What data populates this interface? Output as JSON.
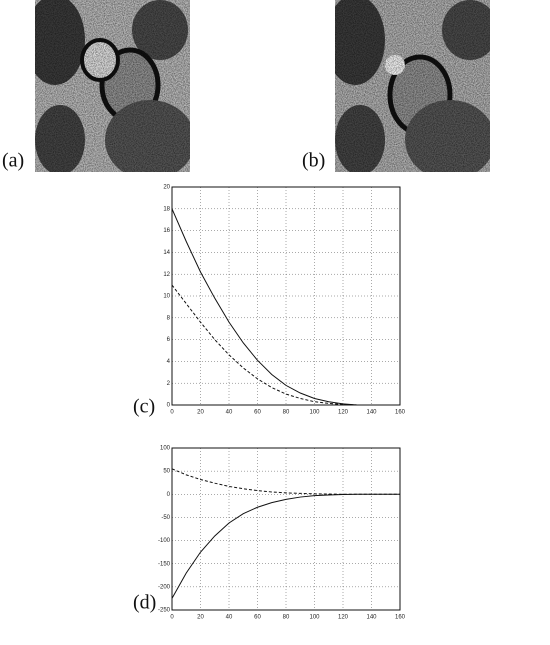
{
  "figure": {
    "labels": [
      "(a)",
      "(b)"
    ]
  },
  "chart_data": [
    {
      "type": "line",
      "label": "(c)",
      "x": [
        0,
        10,
        20,
        30,
        40,
        50,
        60,
        70,
        80,
        90,
        100,
        110,
        120,
        130,
        140,
        150,
        160
      ],
      "series": [
        {
          "color": "#111111",
          "dash": false,
          "values": [
            18,
            15,
            12.2,
            9.8,
            7.6,
            5.7,
            4.1,
            2.8,
            1.8,
            1.1,
            0.6,
            0.3,
            0.1,
            0,
            0,
            0,
            0
          ]
        },
        {
          "color": "#111111",
          "dash": true,
          "values": [
            11,
            9.3,
            7.6,
            6,
            4.6,
            3.4,
            2.4,
            1.6,
            1,
            0.6,
            0.3,
            0.15,
            0.05,
            0,
            0,
            0,
            0
          ]
        }
      ],
      "xlim": [
        0,
        160
      ],
      "xticks": [
        0,
        20,
        40,
        60,
        80,
        100,
        120,
        140,
        160
      ],
      "ylim": [
        0,
        20
      ],
      "yticks": [
        0,
        2,
        4,
        6,
        8,
        10,
        12,
        14,
        16,
        18,
        20
      ],
      "grid": true
    },
    {
      "type": "line",
      "label": "(d)",
      "x": [
        0,
        10,
        20,
        30,
        40,
        50,
        60,
        70,
        80,
        90,
        100,
        110,
        120,
        130,
        140,
        150,
        160
      ],
      "series": [
        {
          "color": "#111111",
          "dash": true,
          "values": [
            55,
            42,
            32,
            24,
            17,
            12,
            8,
            5,
            3,
            2,
            1,
            0.5,
            0,
            0,
            0,
            0,
            0
          ]
        },
        {
          "color": "#111111",
          "dash": false,
          "values": [
            -225,
            -170,
            -125,
            -90,
            -62,
            -42,
            -28,
            -18,
            -11,
            -6,
            -3,
            -1.5,
            -0.5,
            0,
            0,
            0,
            0
          ]
        }
      ],
      "xlim": [
        0,
        160
      ],
      "xticks": [
        0,
        20,
        40,
        60,
        80,
        100,
        120,
        140,
        160
      ],
      "ylim": [
        -250,
        100
      ],
      "yticks": [
        -250,
        -200,
        -150,
        -100,
        -50,
        0,
        50,
        100
      ],
      "grid": true
    }
  ]
}
